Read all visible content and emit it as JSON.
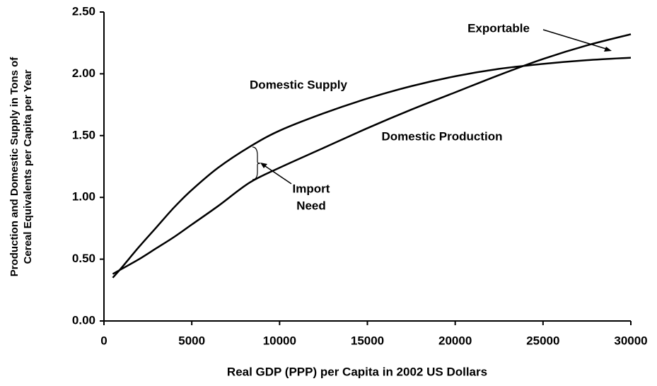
{
  "chart_data": {
    "type": "line",
    "xlabel": "Real GDP (PPP) per Capita in 2002 US Dollars",
    "ylabel": [
      "Production and Domestic Supply in Tons of",
      "Cereal Equivalents per Capita per Year"
    ],
    "x": [
      500,
      1000,
      2000,
      3000,
      4000,
      5000,
      6500,
      8300,
      10000,
      12500,
      15000,
      17500,
      20000,
      22500,
      25000,
      27500,
      30000
    ],
    "series": [
      {
        "name": "Domestic Supply",
        "color": "#000000",
        "values": [
          0.35,
          0.43,
          0.6,
          0.76,
          0.92,
          1.06,
          1.24,
          1.41,
          1.54,
          1.68,
          1.8,
          1.9,
          1.98,
          2.04,
          2.08,
          2.11,
          2.13
        ]
      },
      {
        "name": "Domestic Production",
        "color": "#000000",
        "values": [
          0.38,
          0.42,
          0.5,
          0.59,
          0.68,
          0.78,
          0.93,
          1.12,
          1.24,
          1.4,
          1.56,
          1.71,
          1.85,
          1.99,
          2.12,
          2.23,
          2.32
        ]
      }
    ],
    "annotations": [
      "Import",
      "Need",
      "Exportable"
    ],
    "xlim": [
      0,
      30000
    ],
    "xticks": [
      0,
      5000,
      10000,
      15000,
      20000,
      25000,
      30000
    ],
    "ylim": [
      0,
      2.5
    ],
    "yticks": [
      {
        "value": 0,
        "label": "0.00"
      },
      {
        "value": 0.5,
        "label": "0.50"
      },
      {
        "value": 1,
        "label": "1.00"
      },
      {
        "value": 1.5,
        "label": "1.50"
      },
      {
        "value": 2,
        "label": "2.00"
      },
      {
        "value": 2.5,
        "label": "2.50"
      }
    ],
    "grid": false
  }
}
